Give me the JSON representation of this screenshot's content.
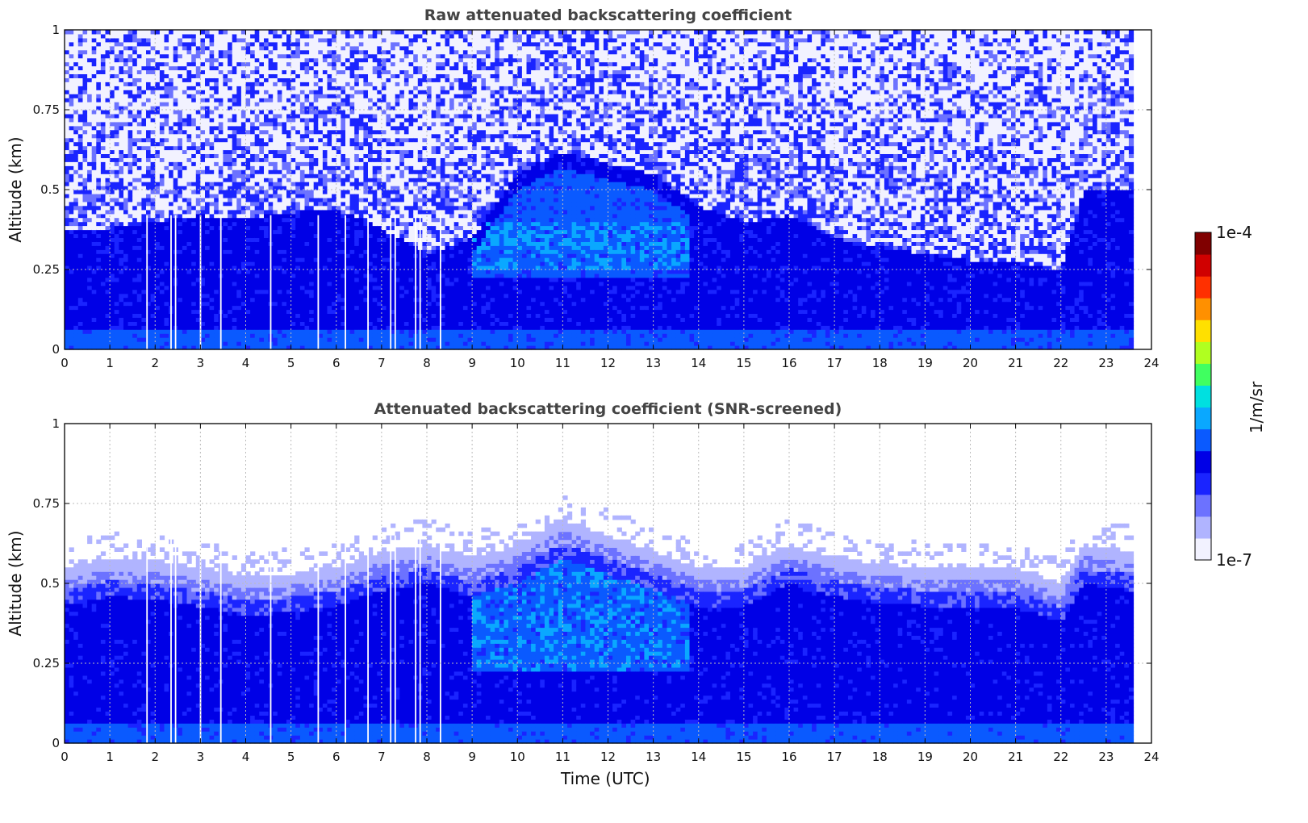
{
  "colors": {
    "colormap": [
      "#f2f2ff",
      "#b0b4ff",
      "#6c72ff",
      "#1a24ff",
      "#0000e6",
      "#0a5aff",
      "#0aa8ff",
      "#00e0e0",
      "#40ff60",
      "#b0ff20",
      "#ffe000",
      "#ff9000",
      "#ff3000",
      "#d00000",
      "#800000"
    ],
    "background": "#ffffff"
  },
  "colorbar": {
    "label": "1/m/sr",
    "max_label": "1e-4",
    "min_label": "1e-7"
  },
  "chart_data": [
    {
      "type": "heatmap",
      "title": "Raw attenuated backscattering coefficient",
      "xlabel": "",
      "ylabel": "Altitude (km)",
      "xlim": [
        0,
        24
      ],
      "ylim": [
        0,
        1
      ],
      "x_ticks": [
        "0",
        "1",
        "2",
        "3",
        "4",
        "5",
        "6",
        "7",
        "8",
        "9",
        "10",
        "11",
        "12",
        "13",
        "14",
        "15",
        "16",
        "17",
        "18",
        "19",
        "20",
        "21",
        "22",
        "23",
        "24"
      ],
      "y_ticks": [
        "0",
        "0.25",
        "0.5",
        "0.75",
        "1"
      ],
      "grid": true,
      "data_extent_x": [
        0,
        23.6
      ],
      "layer_top_km": [
        [
          0,
          0.37
        ],
        [
          1,
          0.38
        ],
        [
          2,
          0.4
        ],
        [
          3,
          0.42
        ],
        [
          4,
          0.41
        ],
        [
          5,
          0.43
        ],
        [
          6,
          0.44
        ],
        [
          7,
          0.38
        ],
        [
          8,
          0.3
        ],
        [
          9,
          0.35
        ],
        [
          10,
          0.55
        ],
        [
          11,
          0.62
        ],
        [
          12,
          0.58
        ],
        [
          13,
          0.55
        ],
        [
          14,
          0.45
        ],
        [
          15,
          0.4
        ],
        [
          16,
          0.42
        ],
        [
          17,
          0.35
        ],
        [
          18,
          0.32
        ],
        [
          19,
          0.3
        ],
        [
          20,
          0.28
        ],
        [
          21,
          0.27
        ],
        [
          22,
          0.25
        ],
        [
          22.5,
          0.5
        ],
        [
          23.6,
          0.5
        ]
      ],
      "gaps_utc": [
        1.82,
        2.35,
        2.45,
        3.0,
        3.45,
        4.55,
        5.6,
        6.2,
        6.7,
        7.2,
        7.3,
        7.75,
        7.85,
        8.3
      ]
    },
    {
      "type": "heatmap",
      "title": "Attenuated backscattering coefficient (SNR-screened)",
      "xlabel": "Time (UTC)",
      "ylabel": "Altitude (km)",
      "xlim": [
        0,
        24
      ],
      "ylim": [
        0,
        1
      ],
      "x_ticks": [
        "0",
        "1",
        "2",
        "3",
        "4",
        "5",
        "6",
        "7",
        "8",
        "9",
        "10",
        "11",
        "12",
        "13",
        "14",
        "15",
        "16",
        "17",
        "18",
        "19",
        "20",
        "21",
        "22",
        "23",
        "24"
      ],
      "y_ticks": [
        "0",
        "0.25",
        "0.5",
        "0.75",
        "1"
      ],
      "grid": true,
      "data_extent_x": [
        0,
        23.6
      ],
      "screened_top_km": [
        [
          0,
          0.55
        ],
        [
          1,
          0.58
        ],
        [
          2,
          0.57
        ],
        [
          3,
          0.55
        ],
        [
          4,
          0.52
        ],
        [
          5,
          0.53
        ],
        [
          6,
          0.55
        ],
        [
          7,
          0.6
        ],
        [
          8,
          0.62
        ],
        [
          9,
          0.58
        ],
        [
          10,
          0.62
        ],
        [
          11,
          0.7
        ],
        [
          12,
          0.65
        ],
        [
          13,
          0.6
        ],
        [
          14,
          0.55
        ],
        [
          15,
          0.55
        ],
        [
          16,
          0.62
        ],
        [
          17,
          0.58
        ],
        [
          18,
          0.56
        ],
        [
          19,
          0.55
        ],
        [
          20,
          0.55
        ],
        [
          21,
          0.55
        ],
        [
          22,
          0.5
        ],
        [
          22.5,
          0.62
        ],
        [
          23.6,
          0.6
        ]
      ],
      "gaps_utc": [
        1.82,
        2.35,
        2.45,
        3.0,
        3.45,
        4.55,
        5.6,
        6.2,
        6.7,
        7.2,
        7.3,
        7.75,
        7.85,
        8.3
      ]
    }
  ]
}
